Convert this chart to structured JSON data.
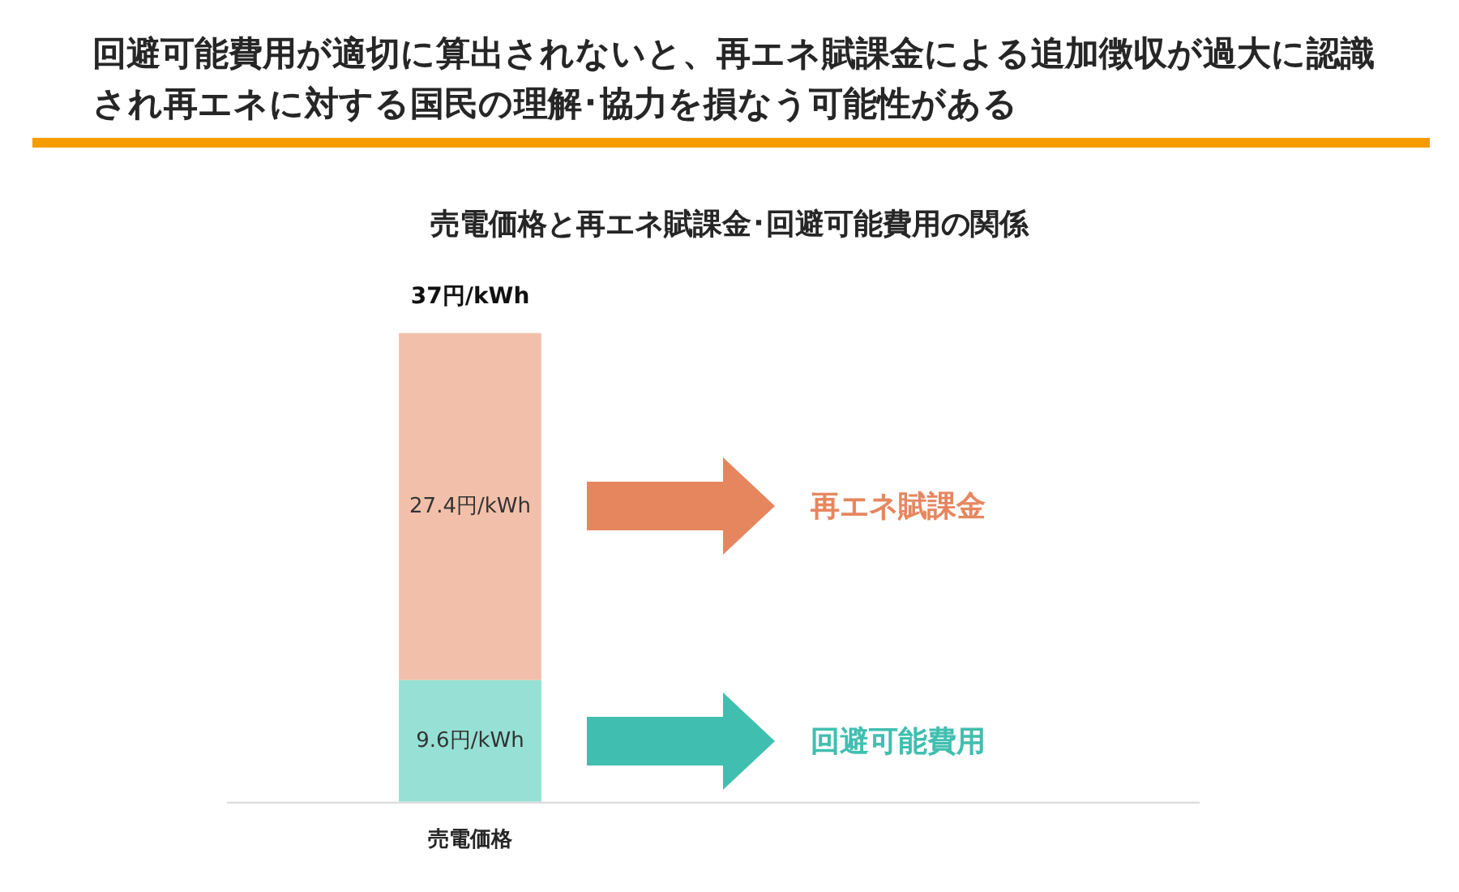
{
  "chart_data": {
    "type": "bar",
    "title": "回避可能費用が適切に算出されないと、再エネ賦課金による追加徴収が過大に認識され再エネに対する国民の理解･協力を損なう可能性がある",
    "subtitle": "売電価格と再エネ賦課金･回避可能費用の関係",
    "categories": [
      "売電価格"
    ],
    "stacked": true,
    "series": [
      {
        "name": "回避可能費用",
        "color": "#96e0d5",
        "values": [
          9.6
        ],
        "value_labels": [
          "9.6円/kWh"
        ]
      },
      {
        "name": "再エネ賦課金",
        "color": "#f2c0aa",
        "values": [
          27.4
        ],
        "value_labels": [
          "27.4円/kWh"
        ]
      }
    ],
    "totals": [
      "37円/kWh"
    ],
    "tick_labels": "x",
    "grid": false,
    "legend": false
  }
}
